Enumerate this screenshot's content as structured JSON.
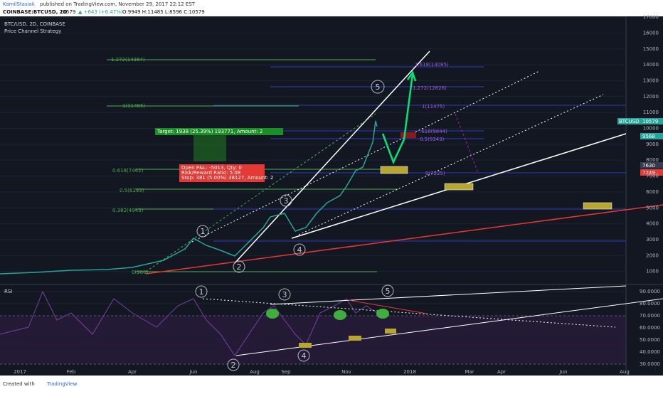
{
  "header": {
    "author": "KamilStasiak",
    "published": "published on TradingView.com, November 29, 2017 22:12 EST",
    "symbol": "COINBASE:BTCUSD, 2D",
    "last": "10579",
    "change": "▲ +643 (+6.47%)",
    "ohlc": "O:9949 H:11485 L:8596 C:10579"
  },
  "chart": {
    "title": "BTC/USD, 2D, COINBASE",
    "strategy": "Price Channel Strategy",
    "price_ticks": [
      1000,
      2000,
      3000,
      4000,
      5000,
      6000,
      7000,
      8000,
      9000,
      10000,
      11000,
      12000,
      13000,
      14000,
      15000,
      16000,
      17000
    ],
    "price_tags": {
      "symbol": "BTCUSD",
      "last": "10579",
      "t1": "9568",
      "t2": "7630",
      "t3": "7249"
    },
    "fib_left": [
      "1.272(14364)",
      "1(11485)",
      "0.618(7442)",
      "0.5(6193)",
      "0.382(4943)",
      "0(980)"
    ],
    "fib_right": [
      "1.618(14085)",
      "1.272(12626)",
      "1(11475)",
      ".618(9844)",
      "0.5(9343)",
      "0(7225)"
    ],
    "target": "Target: 1938 (25.39%) 193771, Amount: 2",
    "open_pnl": "Open P&L: -5013, Qty: 0",
    "risk_reward": "Risk/Reward Ratio: 5.08",
    "stop": "Stop: 381 (5.00%) 38127, Amount: 2",
    "waves": [
      "1",
      "2",
      "3",
      "4",
      "5"
    ]
  },
  "rsi": {
    "title": "RSI",
    "ticks": [
      {
        "value": 30,
        "label": "30.0000"
      },
      {
        "value": 40,
        "label": "40.0000"
      },
      {
        "value": 50,
        "label": "50.0000"
      },
      {
        "value": 60,
        "label": "60.0000"
      },
      {
        "value": 70,
        "label": "70.0000"
      },
      {
        "value": 80,
        "label": "80.0000"
      },
      {
        "value": 90,
        "label": "90.0000"
      }
    ],
    "waves": [
      "1",
      "2",
      "3",
      "4",
      "5"
    ]
  },
  "time_axis": [
    "2017",
    "Feb",
    "Apr",
    "Jun",
    "Aug",
    "Sep",
    "Nov",
    "2018",
    "Mar",
    "Apr",
    "Jun",
    "Aug"
  ],
  "footer": {
    "created": "Created with",
    "brand": "TradingView"
  }
}
